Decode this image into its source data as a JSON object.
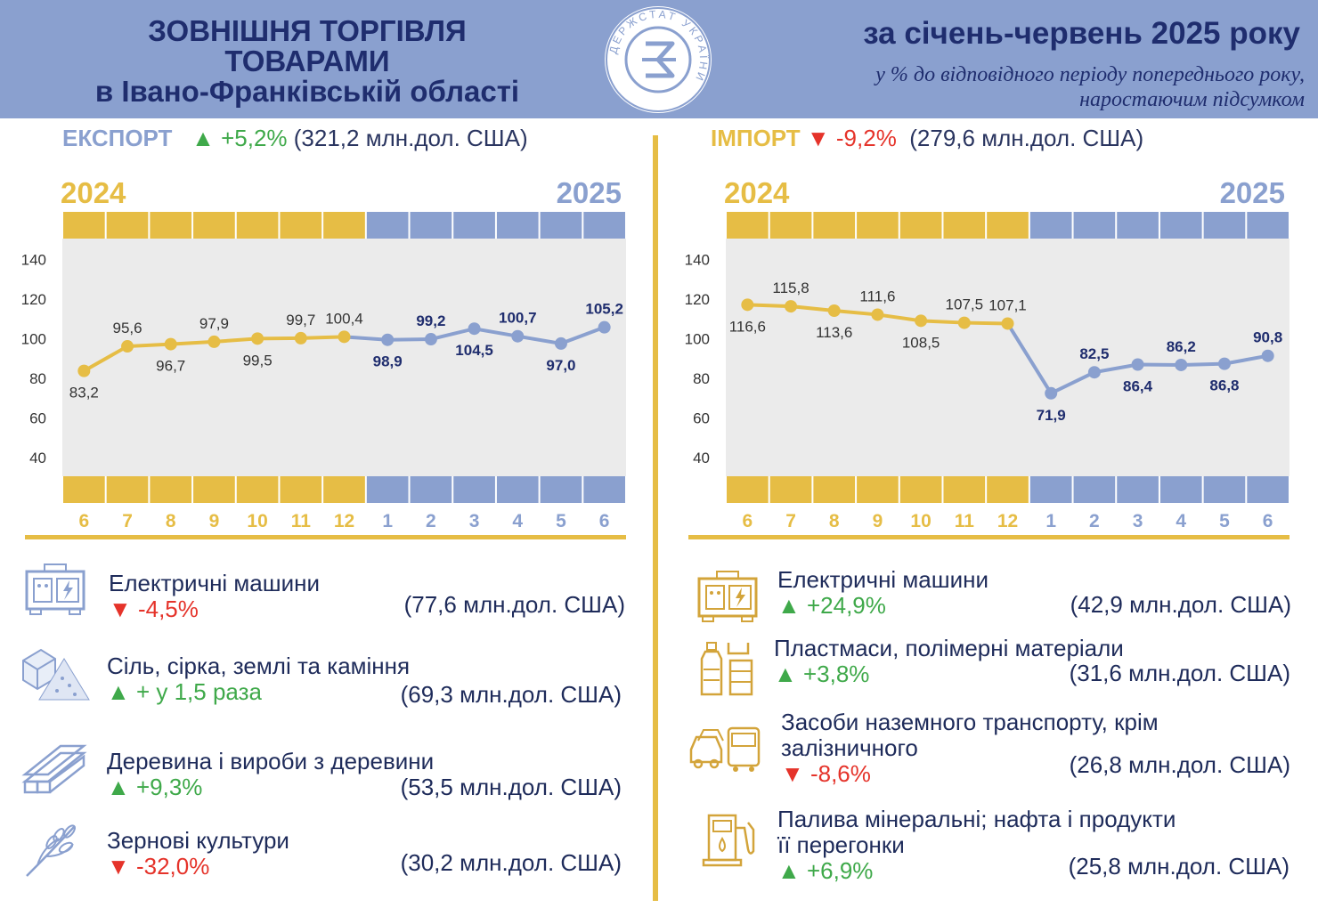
{
  "header": {
    "title_line1": "ЗОВНІШНЯ ТОРГІВЛЯ",
    "title_line2": "ТОВАРАМИ",
    "title_line3": "в Івано-Франківській області",
    "period": "за січень-червень 2025 року",
    "note_line1": "у % до відповідного періоду попереднього  року,",
    "note_line2": "наростаючим підсумком",
    "logo_text": "ДЕРЖСТАТ УКРАЇНИ"
  },
  "export": {
    "label": "ЕКСПОРТ",
    "arrow": "▲",
    "change": "+5,2%",
    "amount": "(321,2 млн.дол. США)",
    "year_left": "2024",
    "year_right": "2025",
    "items": [
      {
        "icon": "generator-icon",
        "name": "Електричні машини",
        "arrow": "▼",
        "change": "-4,5%",
        "dir": "down",
        "value": "(77,6 млн.дол. США)"
      },
      {
        "icon": "salt-stone-icon",
        "name": "Сіль, сірка, землі та каміння",
        "arrow": "▲",
        "change": "+ у 1,5 раза",
        "dir": "up",
        "value": "(69,3 млн.дол. США)"
      },
      {
        "icon": "lumber-icon",
        "name": "Деревина і вироби з деревини",
        "arrow": "▲",
        "change": "+9,3%",
        "dir": "up",
        "value": "(53,5 млн.дол. США)"
      },
      {
        "icon": "wheat-icon",
        "name": "Зернові культури",
        "arrow": "▼",
        "change": "-32,0%",
        "dir": "down",
        "value": "(30,2 млн.дол. США)"
      }
    ]
  },
  "import": {
    "label": "ІМПОРТ",
    "arrow": "▼",
    "change": "-9,2%",
    "amount": "(279,6 млн.дол. США)",
    "year_left": "2024",
    "year_right": "2025",
    "items": [
      {
        "icon": "generator-icon",
        "name": "Електричні машини",
        "name2": "",
        "arrow": "▲",
        "change": "+24,9%",
        "dir": "up",
        "value": "(42,9 млн.дол. США)"
      },
      {
        "icon": "plastic-bottles-icon",
        "name": "Пластмаси, полімерні матеріали",
        "name2": "",
        "arrow": "▲",
        "change": "+3,8%",
        "dir": "up",
        "value": "(31,6 млн.дол. США)"
      },
      {
        "icon": "vehicles-icon",
        "name": "Засоби наземного транспорту, крім",
        "name2": "залізничного",
        "arrow": "▼",
        "change": "-8,6%",
        "dir": "down",
        "value": "(26,8 млн.дол. США)"
      },
      {
        "icon": "fuel-pump-icon",
        "name": "Палива мінеральні; нафта і продукти",
        "name2": "її перегонки",
        "arrow": "▲",
        "change": "+6,9%",
        "dir": "up",
        "value": "(25,8 млн.дол. США)"
      }
    ]
  },
  "colors": {
    "gold": "#e6bd45",
    "blue": "#8aa0cf",
    "navy": "#1f2d6e",
    "plot_bg": "#ebebeb",
    "up": "#3fa94a",
    "down": "#e5332a"
  },
  "chart_data": [
    {
      "type": "line",
      "categories": [
        "6",
        "7",
        "8",
        "9",
        "10",
        "11",
        "12",
        "1",
        "2",
        "3",
        "4",
        "5",
        "6"
      ],
      "values": [
        83.2,
        95.6,
        96.7,
        97.9,
        99.5,
        99.7,
        100.4,
        98.9,
        99.2,
        104.5,
        100.7,
        97.0,
        105.2
      ],
      "labels": [
        "83,2",
        "95,6",
        "96,7",
        "97,9",
        "99,5",
        "99,7",
        "100,4",
        "98,9",
        "99,2",
        "104,5",
        "100,7",
        "97,0",
        "105,2"
      ],
      "label_pos": [
        "below",
        "above",
        "below",
        "above",
        "below",
        "above",
        "above",
        "below",
        "above",
        "below",
        "above",
        "below",
        "above"
      ],
      "split_index": 6,
      "ylim": [
        30,
        150
      ],
      "yticks": [
        40,
        60,
        80,
        100,
        120,
        140
      ],
      "grid": false
    },
    {
      "type": "line",
      "categories": [
        "6",
        "7",
        "8",
        "9",
        "10",
        "11",
        "12",
        "1",
        "2",
        "3",
        "4",
        "5",
        "6"
      ],
      "values": [
        116.6,
        115.8,
        113.6,
        111.6,
        108.5,
        107.5,
        107.1,
        71.9,
        82.5,
        86.4,
        86.2,
        86.8,
        90.8
      ],
      "labels": [
        "116,6",
        "115,8",
        "113,6",
        "111,6",
        "108,5",
        "107,5",
        "107,1",
        "71,9",
        "82,5",
        "86,4",
        "86,2",
        "86,8",
        "90,8"
      ],
      "label_pos": [
        "below",
        "above",
        "below",
        "above",
        "below",
        "above",
        "above",
        "below",
        "above",
        "below",
        "above",
        "below",
        "above"
      ],
      "split_index": 6,
      "ylim": [
        30,
        150
      ],
      "yticks": [
        40,
        60,
        80,
        100,
        120,
        140
      ],
      "grid": false
    }
  ]
}
